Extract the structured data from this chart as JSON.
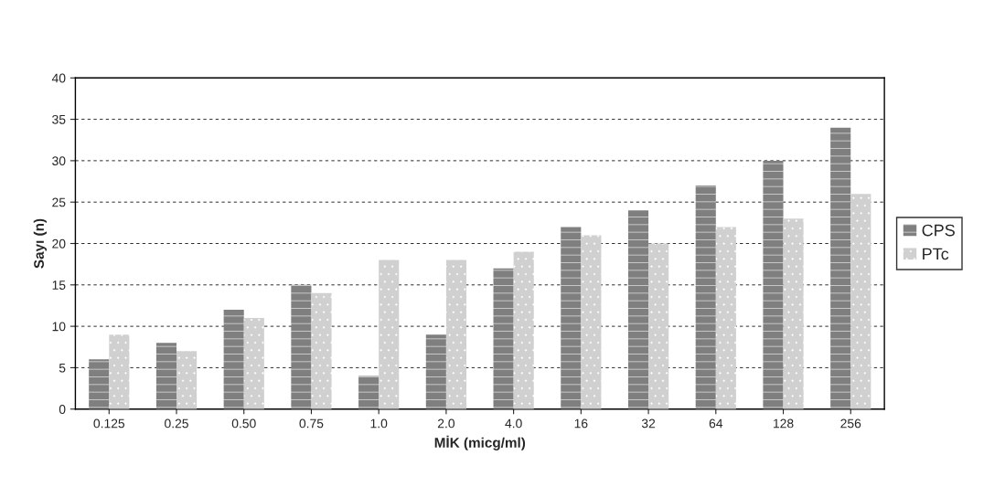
{
  "chart_data": {
    "type": "bar",
    "xlabel": "MİK (micg/ml)",
    "ylabel": "Sayı (n)",
    "categories": [
      "0.125",
      "0.25",
      "0.50",
      "0.75",
      "1.0",
      "2.0",
      "4.0",
      "16",
      "32",
      "64",
      "128",
      "256"
    ],
    "series": [
      {
        "name": "CPS",
        "color": "#7f7f7f",
        "values": [
          6,
          8,
          12,
          15,
          4,
          9,
          17,
          22,
          24,
          27,
          30,
          34
        ]
      },
      {
        "name": "PTc",
        "color": "#d0d0d0",
        "values": [
          9,
          7,
          11,
          14,
          18,
          18,
          19,
          21,
          20,
          22,
          23,
          26
        ]
      }
    ],
    "ylim": [
      0,
      40
    ],
    "yticks": [
      0,
      5,
      10,
      15,
      20,
      25,
      30,
      35,
      40
    ],
    "grid": "y",
    "legend": "right"
  }
}
